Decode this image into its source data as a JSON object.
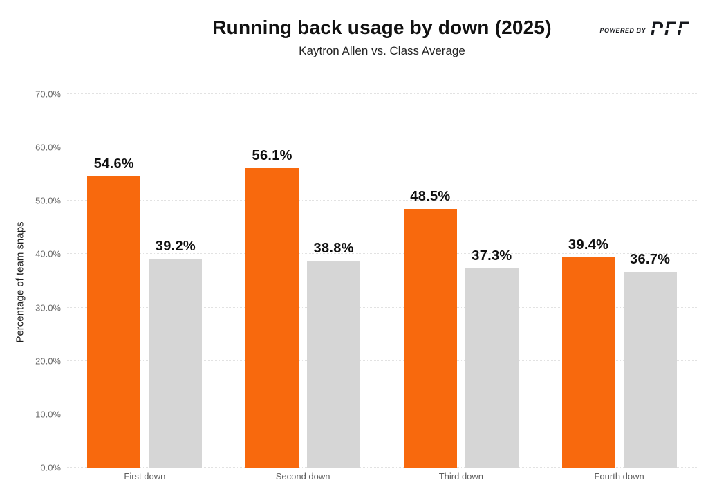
{
  "header": {
    "title": "Running back usage by down (2025)",
    "subtitle": "Kaytron Allen vs. Class Average",
    "powered_by": "POWERED BY",
    "logo_text": "PFF"
  },
  "chart_data": {
    "type": "bar",
    "title": "Running back usage by down (2025)",
    "subtitle": "Kaytron Allen vs. Class Average",
    "categories": [
      "First down",
      "Second down",
      "Third down",
      "Fourth down"
    ],
    "series": [
      {
        "name": "Kaytron Allen",
        "color": "#F8690D",
        "values": [
          54.6,
          56.1,
          48.5,
          39.4
        ]
      },
      {
        "name": "Class Average",
        "color": "#D6D6D6",
        "values": [
          39.2,
          38.8,
          37.3,
          36.7
        ]
      }
    ],
    "value_label_suffix": "%",
    "xlabel": "",
    "ylabel": "Percentage of team snaps",
    "ylim": [
      0,
      70
    ],
    "yticks": [
      0,
      10,
      20,
      30,
      40,
      50,
      60,
      70
    ],
    "ytick_labels": [
      "0.0%",
      "10.0%",
      "20.0%",
      "30.0%",
      "40.0%",
      "50.0%",
      "60.0%",
      "70.0%"
    ],
    "grid": true,
    "legend_position": "none"
  },
  "colors": {
    "background": "#FFFFFF",
    "bar_primary": "#F8690D",
    "bar_secondary": "#D6D6D6",
    "gridline": "#E2E2E2",
    "tick_text": "#6B6B6B",
    "label_text": "#101010",
    "logo": "#16181D"
  }
}
